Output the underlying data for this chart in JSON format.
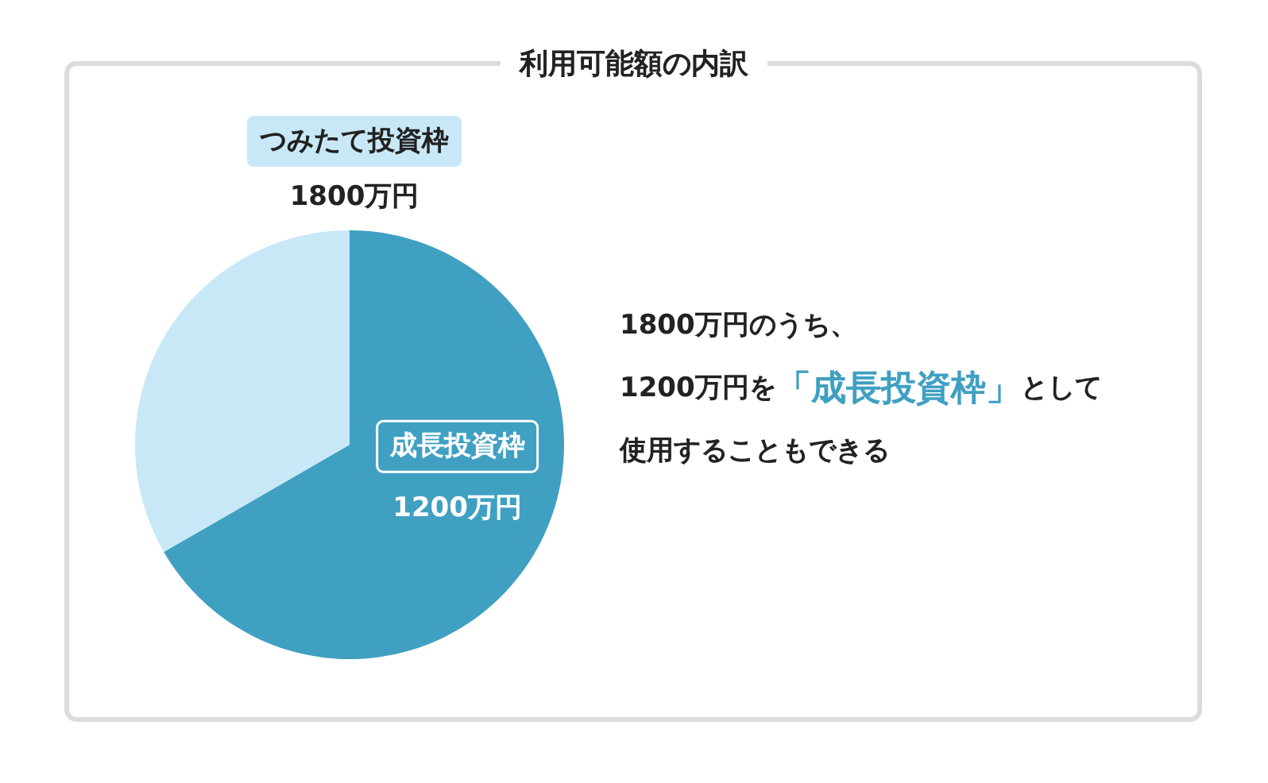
{
  "chart_data": {
    "type": "pie",
    "title": "利用可能額の内訳",
    "categories": [
      "成長投資枠",
      null
    ],
    "values": [
      1200,
      600
    ],
    "colors": [
      "#3fa0c2",
      "#c9e8f7"
    ],
    "value_labels": [
      "1200万円",
      null
    ],
    "annotations": [
      "つみたて投資枠",
      "1800万円",
      "1800万円のうち、",
      "1200万円を**「成長投資枠」**として",
      "使用することもできる"
    ]
  }
}
